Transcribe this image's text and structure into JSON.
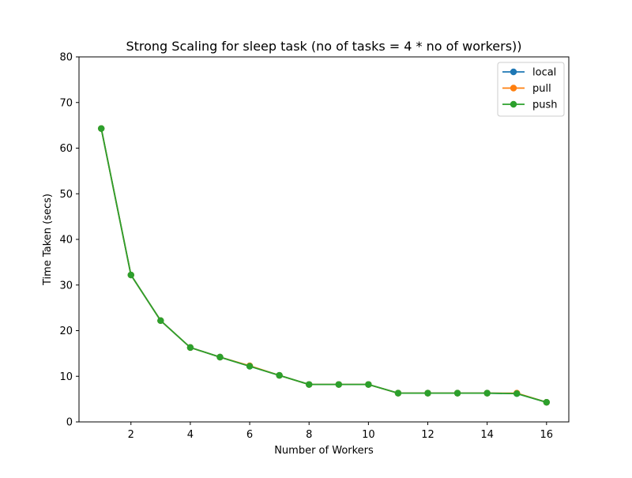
{
  "chart_data": {
    "type": "line",
    "title": "Strong Scaling for sleep task (no of tasks = 4 * no of workers))",
    "xlabel": "Number of Workers",
    "ylabel": "Time Taken (secs)",
    "xlim": [
      0.25,
      16.75
    ],
    "ylim": [
      0,
      80
    ],
    "xticks": [
      2,
      4,
      6,
      8,
      10,
      12,
      14,
      16
    ],
    "yticks": [
      0,
      10,
      20,
      30,
      40,
      50,
      60,
      70,
      80
    ],
    "grid": false,
    "legend_position": "top-right",
    "x": [
      1,
      2,
      3,
      4,
      5,
      6,
      7,
      8,
      9,
      10,
      11,
      12,
      13,
      14,
      15,
      16
    ],
    "series": [
      {
        "name": "local",
        "color": "#1f77b4",
        "marker": "circle",
        "values": [
          64.3,
          32.2,
          22.2,
          16.3,
          14.2,
          12.2,
          10.2,
          8.2,
          8.2,
          8.2,
          6.3,
          6.3,
          6.3,
          6.3,
          6.2,
          4.3
        ]
      },
      {
        "name": "pull",
        "color": "#ff7f0e",
        "marker": "circle",
        "values": [
          64.3,
          32.2,
          22.2,
          16.3,
          14.2,
          12.3,
          10.2,
          8.2,
          8.2,
          8.2,
          6.3,
          6.3,
          6.3,
          6.3,
          6.3,
          4.3
        ]
      },
      {
        "name": "push",
        "color": "#2ca02c",
        "marker": "circle",
        "values": [
          64.3,
          32.2,
          22.2,
          16.3,
          14.2,
          12.2,
          10.2,
          8.2,
          8.2,
          8.2,
          6.3,
          6.3,
          6.3,
          6.3,
          6.2,
          4.3
        ]
      }
    ]
  }
}
